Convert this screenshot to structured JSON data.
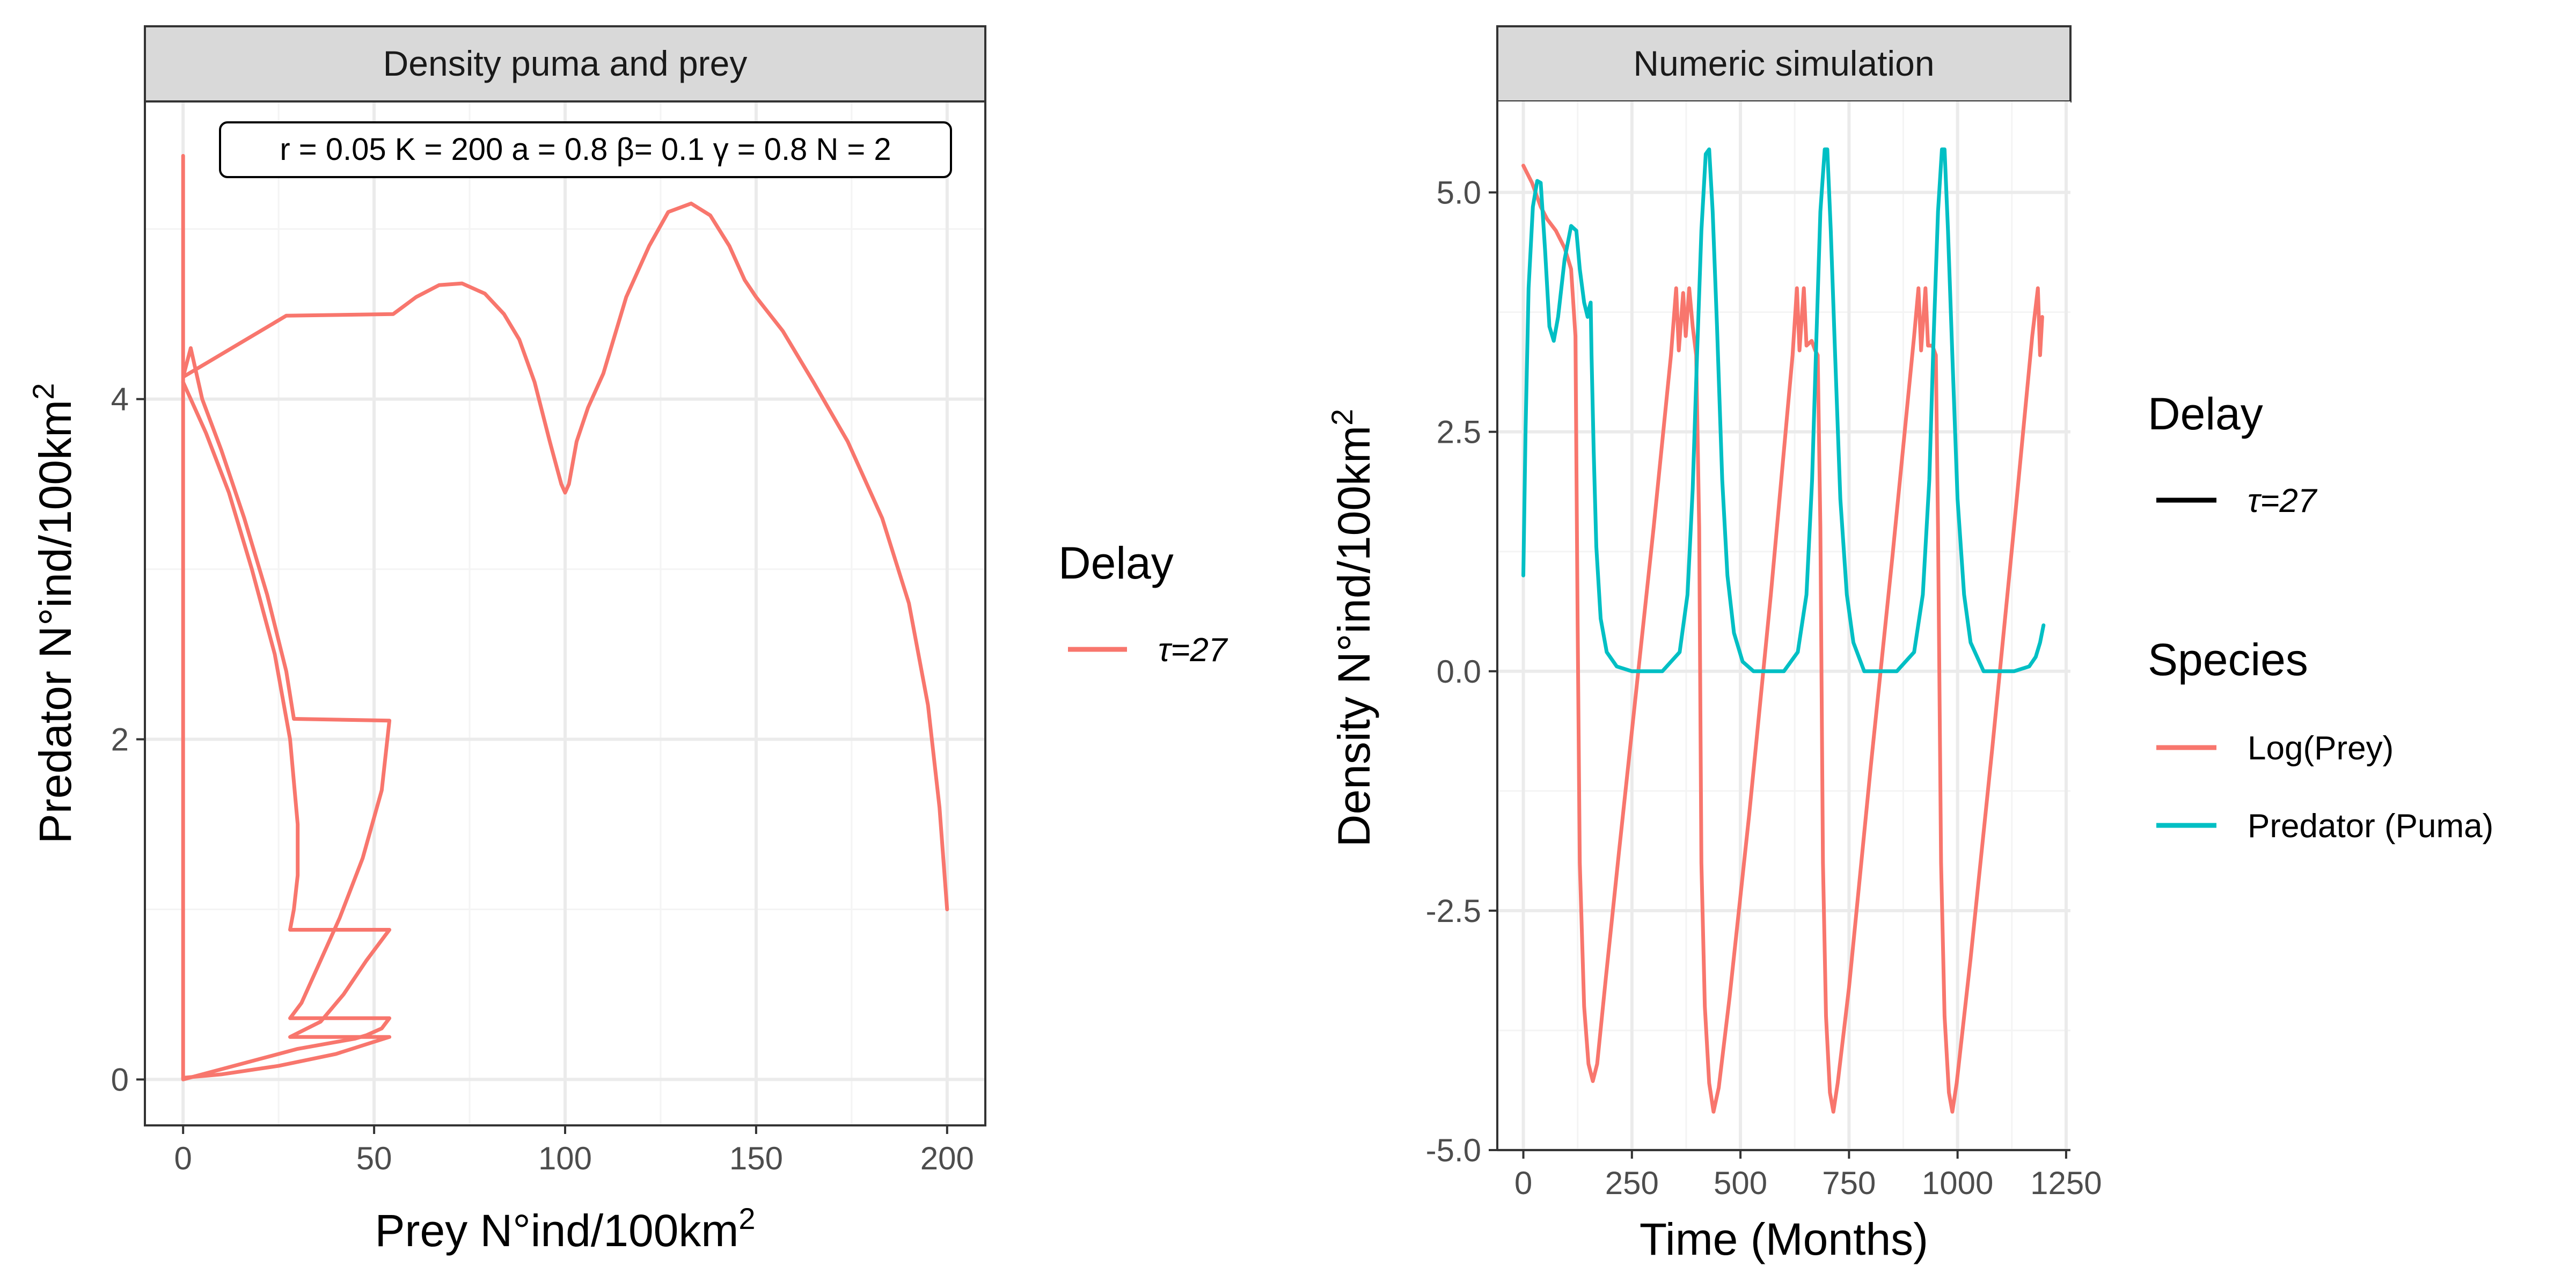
{
  "colors": {
    "prey": "#F8766D",
    "predator": "#00BFC4",
    "delay_key": "#000000",
    "strip_bg": "#d9d9d9",
    "grid": "#ebebeb"
  },
  "left_legend": {
    "title": "Delay",
    "items": [
      {
        "label": "τ=27",
        "color": "#F8766D"
      }
    ]
  },
  "right_legend": {
    "delay_title": "Delay",
    "delay_items": [
      {
        "label": "τ=27",
        "color": "#000000"
      }
    ],
    "species_title": "Species",
    "species_items": [
      {
        "label": "Log(Prey)",
        "color": "#F8766D"
      },
      {
        "label": "Predator (Puma)",
        "color": "#00BFC4"
      }
    ]
  },
  "chart_data": [
    {
      "type": "line",
      "strip_title": "Density puma and prey",
      "annotation": "r = 0.05 K = 200 a = 0.8 β= 0.1 γ = 0.8 N = 2",
      "xlabel": "Prey N°ind/100km",
      "xlabel_sup": "2",
      "ylabel": "Predator N°ind/100km",
      "ylabel_sup": "2",
      "xlim": [
        -10,
        210
      ],
      "ylim": [
        -0.27,
        5.75
      ],
      "x_ticks": [
        0,
        50,
        100,
        150,
        200
      ],
      "y_ticks": [
        0,
        2,
        4
      ],
      "grid": true,
      "legend_position": "right",
      "series": [
        {
          "name": "τ=27",
          "points": [
            [
              200,
              1.0
            ],
            [
              198,
              1.6
            ],
            [
              195,
              2.2
            ],
            [
              190,
              2.8
            ],
            [
              183,
              3.3
            ],
            [
              174,
              3.75
            ],
            [
              165,
              4.1
            ],
            [
              157,
              4.4
            ],
            [
              150,
              4.6
            ],
            [
              147,
              4.7
            ],
            [
              143,
              4.9
            ],
            [
              138,
              5.08
            ],
            [
              133,
              5.15
            ],
            [
              127,
              5.1
            ],
            [
              122,
              4.9
            ],
            [
              116,
              4.6
            ],
            [
              110,
              4.15
            ],
            [
              106,
              3.95
            ],
            [
              103,
              3.75
            ],
            [
              101,
              3.5
            ],
            [
              100,
              3.45
            ],
            [
              99,
              3.5
            ],
            [
              96,
              3.75
            ],
            [
              92,
              4.1
            ],
            [
              88,
              4.35
            ],
            [
              84,
              4.5
            ],
            [
              79,
              4.62
            ],
            [
              73,
              4.68
            ],
            [
              67,
              4.67
            ],
            [
              61,
              4.6
            ],
            [
              55,
              4.5
            ],
            [
              27,
              4.49
            ],
            [
              0,
              4.13
            ],
            [
              2,
              4.3
            ],
            [
              5,
              4.0
            ],
            [
              10,
              3.7
            ],
            [
              16,
              3.3
            ],
            [
              22,
              2.85
            ],
            [
              27,
              2.4
            ],
            [
              29,
              2.12
            ],
            [
              54,
              2.11
            ],
            [
              52,
              1.7
            ],
            [
              47,
              1.3
            ],
            [
              41,
              0.95
            ],
            [
              35,
              0.65
            ],
            [
              31,
              0.45
            ],
            [
              28,
              0.36
            ],
            [
              54,
              0.36
            ],
            [
              52,
              0.3
            ],
            [
              48,
              0.26
            ],
            [
              45,
              0.24
            ],
            [
              40,
              0.22
            ],
            [
              30,
              0.18
            ],
            [
              20,
              0.12
            ],
            [
              10,
              0.06
            ],
            [
              0,
              0
            ],
            [
              0,
              5.43
            ]
          ]
        },
        {
          "name": "τ=27",
          "points": [
            [
              0,
              4.1
            ],
            [
              6,
              3.8
            ],
            [
              12,
              3.45
            ],
            [
              18,
              3.0
            ],
            [
              24,
              2.5
            ],
            [
              28,
              2.0
            ],
            [
              30,
              1.5
            ],
            [
              30,
              1.2
            ],
            [
              29,
              1.0
            ],
            [
              28,
              0.88
            ],
            [
              54,
              0.88
            ],
            [
              48,
              0.7
            ],
            [
              42,
              0.5
            ],
            [
              36,
              0.34
            ],
            [
              28,
              0.25
            ],
            [
              54,
              0.25
            ],
            [
              40,
              0.15
            ],
            [
              25,
              0.08
            ],
            [
              10,
              0.03
            ],
            [
              0,
              0.01
            ]
          ]
        }
      ]
    },
    {
      "type": "line",
      "strip_title": "Numeric simulation",
      "xlabel": "Time (Months)",
      "ylabel": "Density N°ind/100km",
      "ylabel_sup": "2",
      "xlim": [
        -60,
        1260
      ],
      "ylim": [
        -5.0,
        5.95
      ],
      "x_ticks": [
        0,
        250,
        500,
        750,
        1000,
        1250
      ],
      "y_ticks": [
        -5.0,
        -2.5,
        0.0,
        2.5,
        5.0
      ],
      "y_tick_labels": [
        "-5.0",
        "-2.5",
        "0.0",
        "2.5",
        "5.0"
      ],
      "grid": true,
      "legend_position": "right",
      "series": [
        {
          "name": "Log(Prey)",
          "points": [
            [
              0,
              5.28
            ],
            [
              20,
              5.1
            ],
            [
              40,
              4.85
            ],
            [
              55,
              4.72
            ],
            [
              75,
              4.6
            ],
            [
              95,
              4.42
            ],
            [
              110,
              4.2
            ],
            [
              120,
              3.5
            ],
            [
              125,
              0.5
            ],
            [
              130,
              -2.0
            ],
            [
              140,
              -3.5
            ],
            [
              150,
              -4.1
            ],
            [
              160,
              -4.28
            ],
            [
              170,
              -4.1
            ],
            [
              190,
              -3.2
            ],
            [
              220,
              -1.9
            ],
            [
              260,
              -0.2
            ],
            [
              300,
              1.5
            ],
            [
              340,
              3.3
            ],
            [
              352,
              4.0
            ],
            [
              358,
              3.35
            ],
            [
              368,
              3.95
            ],
            [
              374,
              3.5
            ],
            [
              382,
              4.0
            ],
            [
              390,
              3.6
            ],
            [
              398,
              3.3
            ],
            [
              405,
              1.5
            ],
            [
              410,
              -2.0
            ],
            [
              418,
              -3.5
            ],
            [
              428,
              -4.3
            ],
            [
              438,
              -4.6
            ],
            [
              450,
              -4.35
            ],
            [
              475,
              -3.4
            ],
            [
              520,
              -1.5
            ],
            [
              570,
              0.8
            ],
            [
              620,
              3.3
            ],
            [
              630,
              4.0
            ],
            [
              636,
              3.35
            ],
            [
              646,
              4.0
            ],
            [
              652,
              3.4
            ],
            [
              664,
              3.45
            ],
            [
              672,
              3.35
            ],
            [
              678,
              3.3
            ],
            [
              684,
              1.5
            ],
            [
              690,
              -2.0
            ],
            [
              697,
              -3.6
            ],
            [
              706,
              -4.4
            ],
            [
              714,
              -4.6
            ],
            [
              724,
              -4.3
            ],
            [
              750,
              -3.3
            ],
            [
              800,
              -1.0
            ],
            [
              850,
              1.2
            ],
            [
              900,
              3.5
            ],
            [
              910,
              4.0
            ],
            [
              916,
              3.35
            ],
            [
              926,
              4.0
            ],
            [
              932,
              3.4
            ],
            [
              942,
              3.4
            ],
            [
              950,
              3.3
            ],
            [
              955,
              1.5
            ],
            [
              962,
              -2.0
            ],
            [
              970,
              -3.6
            ],
            [
              980,
              -4.4
            ],
            [
              988,
              -4.6
            ],
            [
              998,
              -4.3
            ],
            [
              1030,
              -3.0
            ],
            [
              1080,
              -0.8
            ],
            [
              1130,
              1.5
            ],
            [
              1172,
              3.5
            ],
            [
              1185,
              4.0
            ],
            [
              1190,
              3.3
            ],
            [
              1195,
              3.7
            ]
          ]
        },
        {
          "name": "Predator (Puma)",
          "points": [
            [
              0,
              1.0
            ],
            [
              5,
              2.5
            ],
            [
              12,
              4.0
            ],
            [
              22,
              4.85
            ],
            [
              32,
              5.12
            ],
            [
              40,
              5.1
            ],
            [
              50,
              4.4
            ],
            [
              60,
              3.6
            ],
            [
              70,
              3.45
            ],
            [
              80,
              3.7
            ],
            [
              95,
              4.3
            ],
            [
              110,
              4.65
            ],
            [
              122,
              4.6
            ],
            [
              130,
              4.2
            ],
            [
              140,
              3.85
            ],
            [
              148,
              3.7
            ],
            [
              152,
              3.8
            ],
            [
              155,
              3.85
            ],
            [
              157,
              3.3
            ],
            [
              162,
              2.3
            ],
            [
              168,
              1.3
            ],
            [
              178,
              0.55
            ],
            [
              192,
              0.2
            ],
            [
              215,
              0.05
            ],
            [
              250,
              0.0
            ],
            [
              320,
              0.0
            ],
            [
              360,
              0.2
            ],
            [
              378,
              0.8
            ],
            [
              390,
              1.9
            ],
            [
              400,
              3.3
            ],
            [
              410,
              4.6
            ],
            [
              420,
              5.4
            ],
            [
              428,
              5.45
            ],
            [
              436,
              4.8
            ],
            [
              446,
              3.6
            ],
            [
              458,
              2.0
            ],
            [
              470,
              1.0
            ],
            [
              485,
              0.4
            ],
            [
              505,
              0.1
            ],
            [
              530,
              0.0
            ],
            [
              600,
              0.0
            ],
            [
              632,
              0.2
            ],
            [
              652,
              0.8
            ],
            [
              665,
              2.0
            ],
            [
              675,
              3.5
            ],
            [
              684,
              4.8
            ],
            [
              694,
              5.45
            ],
            [
              700,
              5.45
            ],
            [
              708,
              4.6
            ],
            [
              718,
              3.3
            ],
            [
              730,
              1.8
            ],
            [
              745,
              0.8
            ],
            [
              760,
              0.3
            ],
            [
              785,
              0.0
            ],
            [
              860,
              0.0
            ],
            [
              900,
              0.2
            ],
            [
              920,
              0.8
            ],
            [
              935,
              2.0
            ],
            [
              945,
              3.5
            ],
            [
              955,
              4.8
            ],
            [
              964,
              5.45
            ],
            [
              970,
              5.45
            ],
            [
              978,
              4.6
            ],
            [
              988,
              3.3
            ],
            [
              1000,
              1.8
            ],
            [
              1015,
              0.8
            ],
            [
              1030,
              0.3
            ],
            [
              1060,
              0.0
            ],
            [
              1130,
              0.0
            ],
            [
              1165,
              0.05
            ],
            [
              1180,
              0.15
            ],
            [
              1190,
              0.3
            ],
            [
              1198,
              0.48
            ]
          ]
        }
      ]
    }
  ]
}
